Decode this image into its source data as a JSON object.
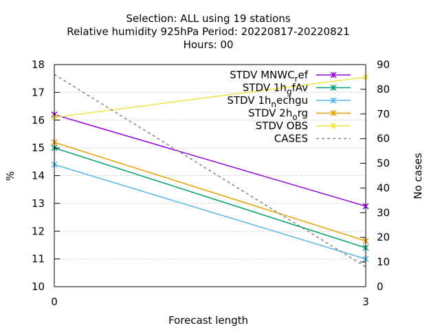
{
  "chart_data": {
    "type": "line",
    "title_lines": [
      "Selection: ALL using    19 stations",
      "Relative humidity 925hPa   Period: 20220817-20220821",
      "Hours:  00"
    ],
    "xlabel": "Forecast length",
    "ylabel": "%",
    "y2label": "No cases",
    "x": [
      0,
      3
    ],
    "xlim": [
      0,
      3
    ],
    "ylim": [
      10,
      18
    ],
    "y2lim": [
      0,
      90
    ],
    "xticks": [
      "0",
      "3"
    ],
    "yticks": [
      "10",
      "11",
      "12",
      "13",
      "14",
      "15",
      "16",
      "17",
      "18"
    ],
    "y2ticks": [
      "0",
      "10",
      "20",
      "30",
      "40",
      "50",
      "60",
      "70",
      "80",
      "90"
    ],
    "grid": true,
    "legend_position": "top-right",
    "series": [
      {
        "name": "STDV MNWC_ref",
        "legend_base": "STDV MNWC",
        "legend_sub": "r",
        "legend_tail": "ef",
        "values": [
          16.2,
          12.9
        ],
        "color": "#9400d3",
        "axis": "y1",
        "marker": "x"
      },
      {
        "name": "STDV 1h_gfAv",
        "legend_base": "STDV 1h",
        "legend_sub": "g",
        "legend_tail": "fAv",
        "values": [
          15.0,
          11.4
        ],
        "color": "#009e73",
        "axis": "y1",
        "marker": "x"
      },
      {
        "name": "STDV 1h_nechgu",
        "legend_base": "STDV 1h",
        "legend_sub": "n",
        "legend_tail": "echgu",
        "values": [
          14.4,
          11.0
        ],
        "color": "#56b4e9",
        "axis": "y1",
        "marker": "x"
      },
      {
        "name": "STDV 2h_org",
        "legend_base": "STDV 2h",
        "legend_sub": "o",
        "legend_tail": "rg",
        "values": [
          15.2,
          11.65
        ],
        "color": "#e69f00",
        "axis": "y1",
        "marker": "x"
      },
      {
        "name": "STDV OBS",
        "legend_base": "STDV OBS",
        "legend_sub": "",
        "legend_tail": "",
        "values": [
          16.1,
          17.55
        ],
        "color": "#f0e442",
        "axis": "y1",
        "marker": "x"
      },
      {
        "name": "CASES",
        "legend_base": "CASES",
        "legend_sub": "",
        "legend_tail": "",
        "values": [
          86,
          8
        ],
        "color": "#808080",
        "axis": "y2",
        "marker": "none",
        "dashed": true
      }
    ]
  }
}
